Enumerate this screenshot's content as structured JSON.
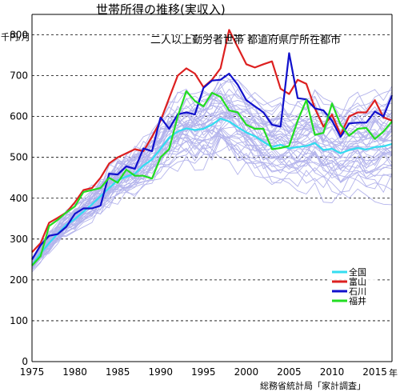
{
  "chart_data": {
    "type": "line",
    "title": "世帯所得の推移(実収入)",
    "subtitle": "二人以上勤労者世帯 都道府県庁所在都市",
    "ylabel": "千円/月",
    "xlabel": "年",
    "source": "総務省統計局「家計調査」",
    "xlim": [
      1975,
      2017
    ],
    "ylim": [
      0,
      850
    ],
    "x_ticks": [
      1975,
      1980,
      1985,
      1990,
      1995,
      2000,
      2005,
      2010,
      2015
    ],
    "y_ticks": [
      0,
      100,
      200,
      300,
      400,
      500,
      600,
      700,
      800
    ],
    "grid": "horizontal-dashed",
    "legend_position": "lower-right",
    "colors": {
      "全国": "#33ddf0",
      "富山": "#dd2020",
      "石川": "#1010cc",
      "福井": "#22dd22",
      "background_cities": "#b4b4ec"
    },
    "x": [
      1975,
      1976,
      1977,
      1978,
      1979,
      1980,
      1981,
      1982,
      1983,
      1984,
      1985,
      1986,
      1987,
      1988,
      1989,
      1990,
      1991,
      1992,
      1993,
      1994,
      1995,
      1996,
      1997,
      1998,
      1999,
      2000,
      2001,
      2002,
      2003,
      2004,
      2005,
      2006,
      2007,
      2008,
      2009,
      2010,
      2011,
      2012,
      2013,
      2014,
      2015,
      2016,
      2017
    ],
    "series": [
      {
        "name": "全国",
        "values": [
          236,
          265,
          290,
          313,
          335,
          349,
          367,
          385,
          405,
          425,
          444,
          453,
          460,
          480,
          495,
          521,
          548,
          563,
          571,
          567,
          570,
          580,
          595,
          588,
          574,
          561,
          552,
          538,
          525,
          531,
          522,
          525,
          528,
          535,
          518,
          521,
          510,
          518,
          523,
          519,
          525,
          527,
          533
        ]
      },
      {
        "name": "富山",
        "values": [
          268,
          290,
          340,
          352,
          365,
          390,
          420,
          425,
          450,
          485,
          500,
          510,
          520,
          515,
          550,
          590,
          645,
          700,
          718,
          705,
          672,
          690,
          718,
          812,
          770,
          728,
          720,
          728,
          735,
          668,
          655,
          690,
          680,
          620,
          575,
          605,
          555,
          600,
          610,
          610,
          640,
          598,
          590
        ]
      },
      {
        "name": "石川",
        "values": [
          250,
          285,
          308,
          312,
          330,
          362,
          375,
          375,
          382,
          460,
          458,
          478,
          472,
          522,
          515,
          598,
          570,
          605,
          610,
          605,
          670,
          688,
          690,
          705,
          678,
          640,
          625,
          610,
          580,
          575,
          755,
          645,
          642,
          620,
          615,
          590,
          550,
          583,
          585,
          585,
          612,
          600,
          652
        ]
      },
      {
        "name": "福井",
        "values": [
          235,
          258,
          332,
          347,
          365,
          380,
          415,
          420,
          425,
          450,
          438,
          470,
          455,
          455,
          448,
          500,
          520,
          600,
          662,
          638,
          625,
          658,
          648,
          615,
          610,
          580,
          570,
          570,
          520,
          523,
          528,
          590,
          640,
          555,
          560,
          632,
          580,
          553,
          570,
          572,
          545,
          563,
          588
        ]
      }
    ],
    "background_series_count": 46
  }
}
